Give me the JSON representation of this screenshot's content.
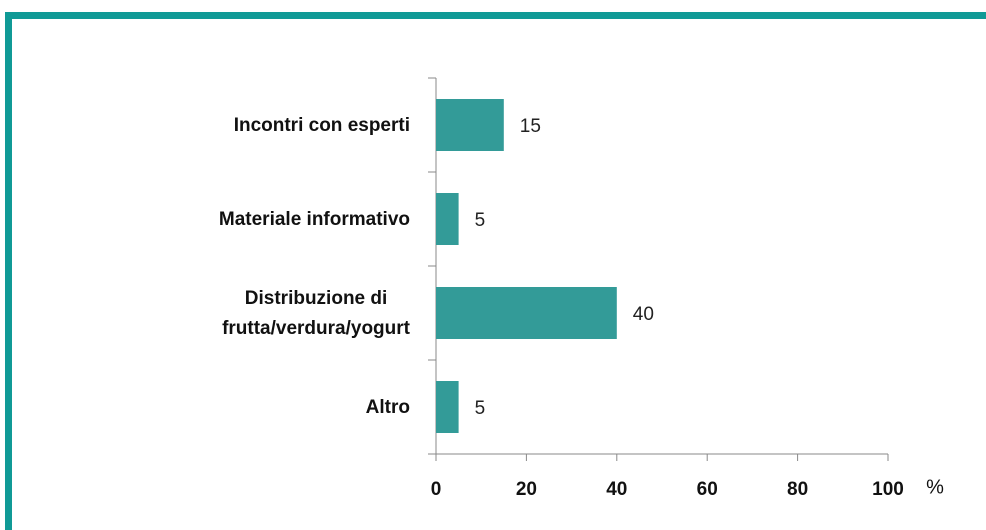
{
  "chart_data": {
    "type": "bar",
    "orientation": "horizontal",
    "categories": [
      "Incontri con esperti",
      "Materiale informativo",
      "Distribuzione di\nfrutta/verdura/yogurt",
      "Altro"
    ],
    "values": [
      15,
      5,
      40,
      5
    ],
    "color": "#339b98",
    "xlim": [
      0,
      100
    ],
    "xticks": [
      0,
      20,
      40,
      60,
      80,
      100
    ],
    "x_label": "%",
    "grid": false
  }
}
